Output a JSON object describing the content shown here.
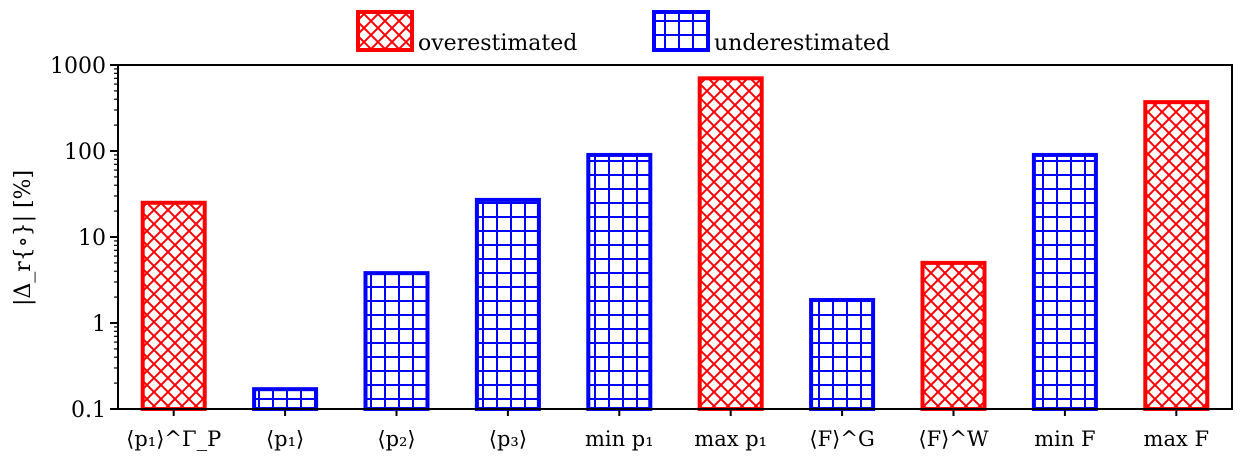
{
  "chart_data": {
    "type": "bar",
    "scale": "log",
    "categories": [
      "⟨p₁⟩^Γ_P",
      "⟨p₁⟩",
      "⟨p₂⟩",
      "⟨p₃⟩",
      "min p₁",
      "max p₁",
      "⟨F⟩^G",
      "⟨F⟩^W",
      "min F",
      "max F"
    ],
    "values": [
      25,
      0.17,
      3.8,
      27,
      90,
      700,
      1.85,
      5.0,
      90,
      370
    ],
    "kind": [
      "over",
      "under",
      "under",
      "under",
      "under",
      "over",
      "under",
      "over",
      "under",
      "over"
    ],
    "ylabel": "|Δ_r{∘}| [%]",
    "ylim": [
      0.1,
      1000
    ],
    "yticks": [
      "0.1",
      "1",
      "10",
      "100",
      "1000"
    ],
    "legend": {
      "placement": "top-center",
      "entries": [
        {
          "key": "over",
          "label": "overestimated",
          "color": "#ff0000",
          "hatch": "diagonal-cross"
        },
        {
          "key": "under",
          "label": "underestimated",
          "color": "#0000ff",
          "hatch": "grid"
        }
      ]
    },
    "grid": false
  }
}
